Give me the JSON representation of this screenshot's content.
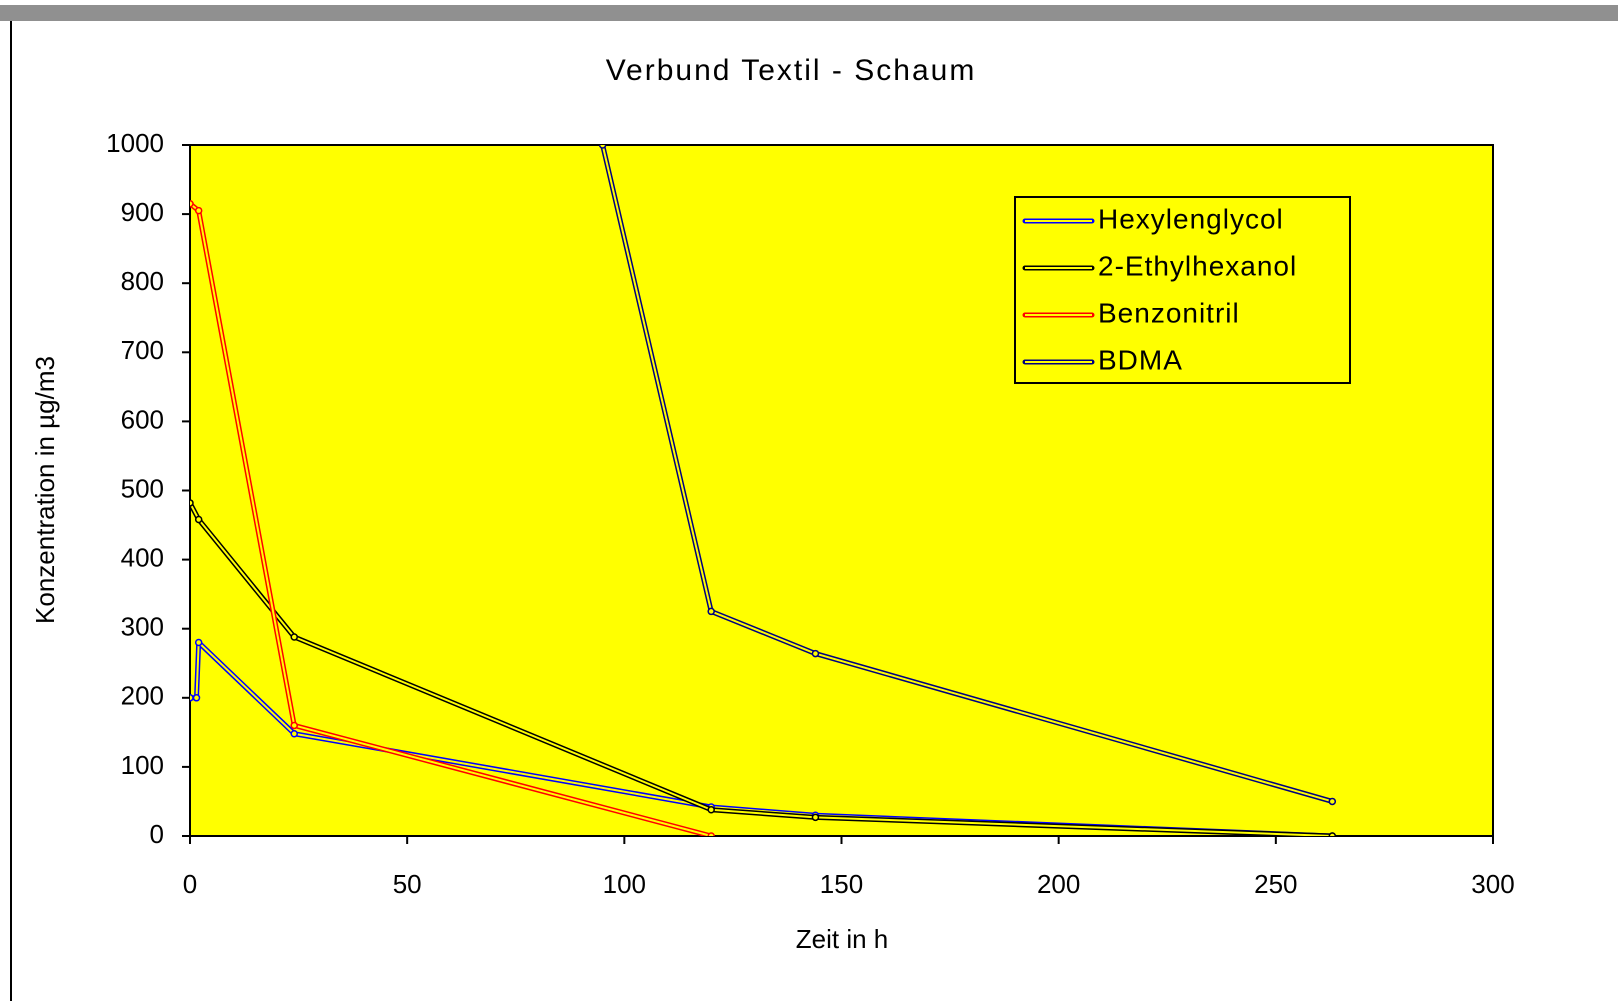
{
  "chart_data": {
    "type": "line",
    "title": "Verbund Textil - Schaum",
    "x_label": "Zeit in h",
    "y_label": "Konzentration in µg/m3",
    "xlim": [
      0,
      300
    ],
    "xticks": [
      0,
      50,
      100,
      150,
      200,
      250,
      300
    ],
    "ylim": [
      0,
      1000
    ],
    "yticks": [
      0,
      100,
      200,
      300,
      400,
      500,
      600,
      700,
      800,
      900,
      1000
    ],
    "background": "#ffff00",
    "legend": "upper right",
    "series": [
      {
        "name": "Hexylenglycol",
        "color": "#0000ff",
        "x": [
          0,
          1.5,
          2,
          24,
          120,
          144,
          263
        ],
        "values": [
          200,
          200,
          280,
          148,
          42,
          30,
          0
        ]
      },
      {
        "name": "2-Ethylhexanol",
        "color": "#000000",
        "x": [
          0,
          2,
          24,
          120,
          144,
          263
        ],
        "values": [
          482,
          458,
          288,
          38,
          27,
          0
        ]
      },
      {
        "name": "Benzonitril",
        "color": "#ff0000",
        "x": [
          0,
          2,
          24,
          120
        ],
        "values": [
          915,
          905,
          160,
          0
        ]
      },
      {
        "name": "BDMA",
        "color": "#000080",
        "x": [
          95,
          120,
          144,
          263
        ],
        "values": [
          1000,
          325,
          264,
          50
        ]
      }
    ]
  }
}
